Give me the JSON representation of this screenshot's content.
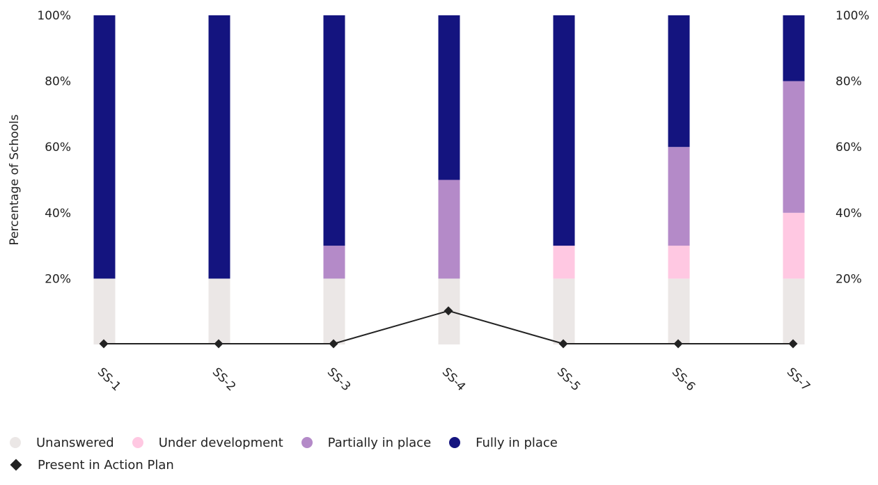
{
  "chart_data": {
    "type": "bar",
    "stacked": true,
    "categories": [
      "SS-1",
      "SS-2",
      "SS-3",
      "SS-4",
      "SS-5",
      "SS-6",
      "SS-7"
    ],
    "series": [
      {
        "name": "Unanswered",
        "color": "#ebe7e6",
        "values": [
          20,
          20,
          20,
          20,
          20,
          20,
          20
        ]
      },
      {
        "name": "Under development",
        "color": "#ffc8e2",
        "values": [
          0,
          0,
          0,
          0,
          10,
          10,
          20
        ]
      },
      {
        "name": "Partially in place",
        "color": "#b48ac8",
        "values": [
          0,
          0,
          10,
          30,
          0,
          30,
          40
        ]
      },
      {
        "name": "Fully in place",
        "color": "#14147f",
        "values": [
          80,
          80,
          70,
          50,
          70,
          40,
          20
        ]
      }
    ],
    "line_series": {
      "name": "Present in Action Plan",
      "color": "#222222",
      "marker": "diamond",
      "values": [
        0,
        0,
        0,
        10,
        0,
        0,
        0
      ]
    },
    "ylabel": "Percentage of Schools",
    "ylim": [
      0,
      100
    ],
    "y_ticks": [
      {
        "value": 20,
        "label": "20%"
      },
      {
        "value": 40,
        "label": "40%"
      },
      {
        "value": 60,
        "label": "60%"
      },
      {
        "value": 80,
        "label": "80%"
      },
      {
        "value": 100,
        "label": "100%"
      }
    ],
    "grid": false,
    "legend_position": "bottom"
  }
}
